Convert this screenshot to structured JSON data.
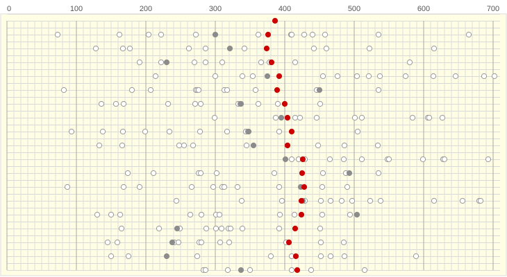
{
  "chart_data": {
    "type": "scatter",
    "xlim": [
      -10,
      720
    ],
    "xticks": [
      0,
      100,
      200,
      300,
      400,
      500,
      600,
      700
    ],
    "ylim": [
      18.5,
      -0.5
    ],
    "grid": true,
    "minor_x_step": 10,
    "series": [
      {
        "color": "#999999",
        "filled": false,
        "x": [
          73,
          162,
          204,
          222,
          272,
          362,
          409,
          410,
          428,
          440,
          458,
          535,
          665,
          128,
          167,
          177,
          262,
          286,
          342,
          442,
          460,
          522,
          615,
          191,
          222,
          270,
          286,
          310,
          366,
          378,
          415,
          580,
          214,
          300,
          339,
          354,
          455,
          476,
          504,
          521,
          537,
          574,
          614,
          646,
          687,
          702,
          82,
          180,
          207,
          272,
          274,
          276,
          313,
          317,
          358,
          446,
          535,
          136,
          157,
          168,
          232,
          271,
          279,
          333,
          336,
          362,
          390,
          451,
          299,
          387,
          415,
          422,
          446,
          501,
          511,
          584,
          606,
          608,
          627,
          93,
          138,
          167,
          199,
          234,
          278,
          317,
          344,
          347,
          392,
          505,
          133,
          166,
          248,
          255,
          268,
          345,
          448,
          486,
          534,
          410,
          420,
          429,
          465,
          485,
          511,
          548,
          550,
          599,
          628,
          630,
          693,
          174,
          211,
          276,
          279,
          302,
          385,
          455,
          488,
          535,
          87,
          168,
          191,
          266,
          297,
          310,
          313,
          332,
          392,
          454,
          490,
          244,
          338,
          396,
          429,
          452,
          466,
          482,
          497,
          523,
          538,
          615,
          656,
          680,
          682,
          130,
          150,
          163,
          264,
          280,
          301,
          306,
          393,
          414,
          454,
          494,
          165,
          219,
          249,
          287,
          301,
          309,
          319,
          322,
          339,
          392,
          451,
          145,
          159,
          241,
          247,
          277,
          280,
          307,
          320,
          402,
          452,
          485,
          150,
          175,
          274,
          380,
          410,
          452,
          466,
          486,
          589,
          283,
          286,
          318,
          350,
          410,
          438,
          515
        ],
        "y": [
          1,
          1,
          1,
          1,
          1,
          1,
          1,
          1,
          1,
          1,
          1,
          1,
          1,
          2,
          2,
          2,
          2,
          2,
          2,
          2,
          2,
          2,
          2,
          3,
          3,
          3,
          3,
          3,
          3,
          3,
          3,
          3,
          4,
          4,
          4,
          4,
          4,
          4,
          4,
          4,
          4,
          4,
          4,
          4,
          4,
          4,
          5,
          5,
          5,
          5,
          5,
          5,
          5,
          5,
          5,
          5,
          5,
          6,
          6,
          6,
          6,
          6,
          6,
          6,
          6,
          6,
          6,
          6,
          7,
          7,
          7,
          7,
          7,
          7,
          7,
          7,
          7,
          7,
          7,
          8,
          8,
          8,
          8,
          8,
          8,
          8,
          8,
          8,
          8,
          8,
          9,
          9,
          9,
          9,
          9,
          9,
          9,
          9,
          9,
          10,
          10,
          10,
          10,
          10,
          10,
          10,
          10,
          10,
          10,
          10,
          10,
          11,
          11,
          11,
          11,
          11,
          11,
          11,
          11,
          11,
          12,
          12,
          12,
          12,
          12,
          12,
          12,
          12,
          12,
          12,
          12,
          13,
          13,
          13,
          13,
          13,
          13,
          13,
          13,
          13,
          13,
          13,
          13,
          13,
          13,
          14,
          14,
          14,
          14,
          14,
          14,
          14,
          14,
          14,
          14,
          14,
          15,
          15,
          15,
          15,
          15,
          15,
          15,
          15,
          15,
          15,
          15,
          16,
          16,
          16,
          16,
          16,
          16,
          16,
          16,
          16,
          16,
          16,
          17,
          17,
          17,
          17,
          17,
          17,
          17,
          17,
          17,
          18,
          18,
          18,
          18,
          18,
          18,
          18
        ]
      },
      {
        "color": "#8c8c8c",
        "filled": true,
        "x": [
          300,
          321,
          230,
          375,
          450,
          337,
          395,
          348,
          355,
          401,
          493,
          423,
          426,
          504,
          245,
          238,
          230,
          337
        ],
        "y": [
          1,
          2,
          3,
          4,
          5,
          6,
          7,
          8,
          9,
          10,
          11,
          12,
          13,
          14,
          15,
          16,
          17,
          18
        ]
      },
      {
        "color": "#cc0000",
        "filled": true,
        "x": [
          386,
          376,
          374,
          381,
          392,
          389,
          400,
          404,
          410,
          404,
          426,
          425,
          428,
          424,
          424,
          415,
          406,
          416,
          418
        ],
        "y": [
          0,
          1,
          2,
          3,
          4,
          5,
          6,
          7,
          8,
          9,
          10,
          11,
          12,
          13,
          14,
          15,
          16,
          17,
          18
        ]
      }
    ]
  }
}
